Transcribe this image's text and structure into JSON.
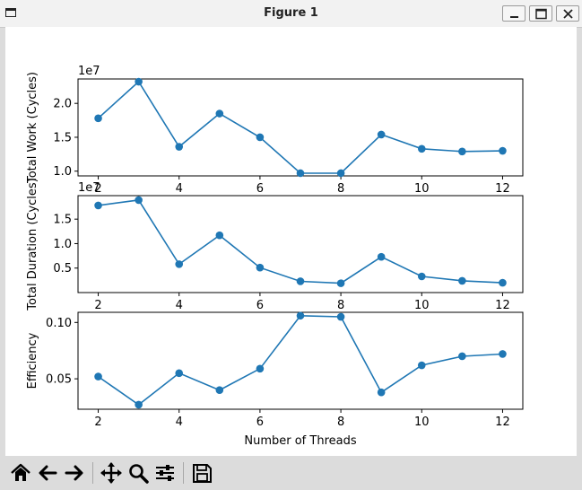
{
  "window": {
    "title": "Figure 1"
  },
  "chart_data": [
    {
      "type": "line",
      "ylabel": "Total Work (Cycles)",
      "offset_text": "1e7",
      "x": [
        2,
        3,
        4,
        5,
        6,
        7,
        8,
        9,
        10,
        11,
        12
      ],
      "series": [
        {
          "values": [
            1.78,
            2.32,
            1.36,
            1.85,
            1.5,
            0.97,
            0.97,
            1.54,
            1.33,
            1.29,
            1.3
          ]
        }
      ],
      "xlim": [
        1.5,
        12.5
      ],
      "ylim": [
        0.93,
        2.36
      ],
      "xticks": [
        "2",
        "4",
        "6",
        "8",
        "10",
        "12"
      ],
      "yticks": [
        "1.0",
        "1.5",
        "2.0"
      ],
      "color": "#1f77b4",
      "grid": false
    },
    {
      "type": "line",
      "ylabel": "Total Duration (Cycles)",
      "offset_text": "1e7",
      "x": [
        2,
        3,
        4,
        5,
        6,
        7,
        8,
        9,
        10,
        11,
        12
      ],
      "series": [
        {
          "values": [
            1.78,
            1.89,
            0.58,
            1.17,
            0.51,
            0.23,
            0.19,
            0.73,
            0.33,
            0.24,
            0.2
          ]
        }
      ],
      "xlim": [
        1.5,
        12.5
      ],
      "ylim": [
        0.0,
        1.98
      ],
      "xticks": [
        "2",
        "4",
        "6",
        "8",
        "10",
        "12"
      ],
      "yticks": [
        "0.5",
        "1.0",
        "1.5"
      ],
      "color": "#1f77b4",
      "grid": false
    },
    {
      "type": "line",
      "ylabel": "Efficiency",
      "xlabel": "Number of Threads",
      "x": [
        2,
        3,
        4,
        5,
        6,
        7,
        8,
        9,
        10,
        11,
        12
      ],
      "series": [
        {
          "values": [
            0.052,
            0.027,
            0.055,
            0.04,
            0.059,
            0.106,
            0.105,
            0.038,
            0.062,
            0.07,
            0.072
          ]
        }
      ],
      "xlim": [
        1.5,
        12.5
      ],
      "ylim": [
        0.023,
        0.109
      ],
      "xticks": [
        "2",
        "4",
        "6",
        "8",
        "10",
        "12"
      ],
      "yticks": [
        "0.05",
        "0.10"
      ],
      "color": "#1f77b4",
      "grid": false
    }
  ],
  "toolbar": {
    "buttons": [
      "home-icon",
      "back-arrow-icon",
      "forward-arrow-icon",
      "pan-icon",
      "zoom-icon",
      "configure-subplots-icon",
      "save-icon"
    ]
  }
}
